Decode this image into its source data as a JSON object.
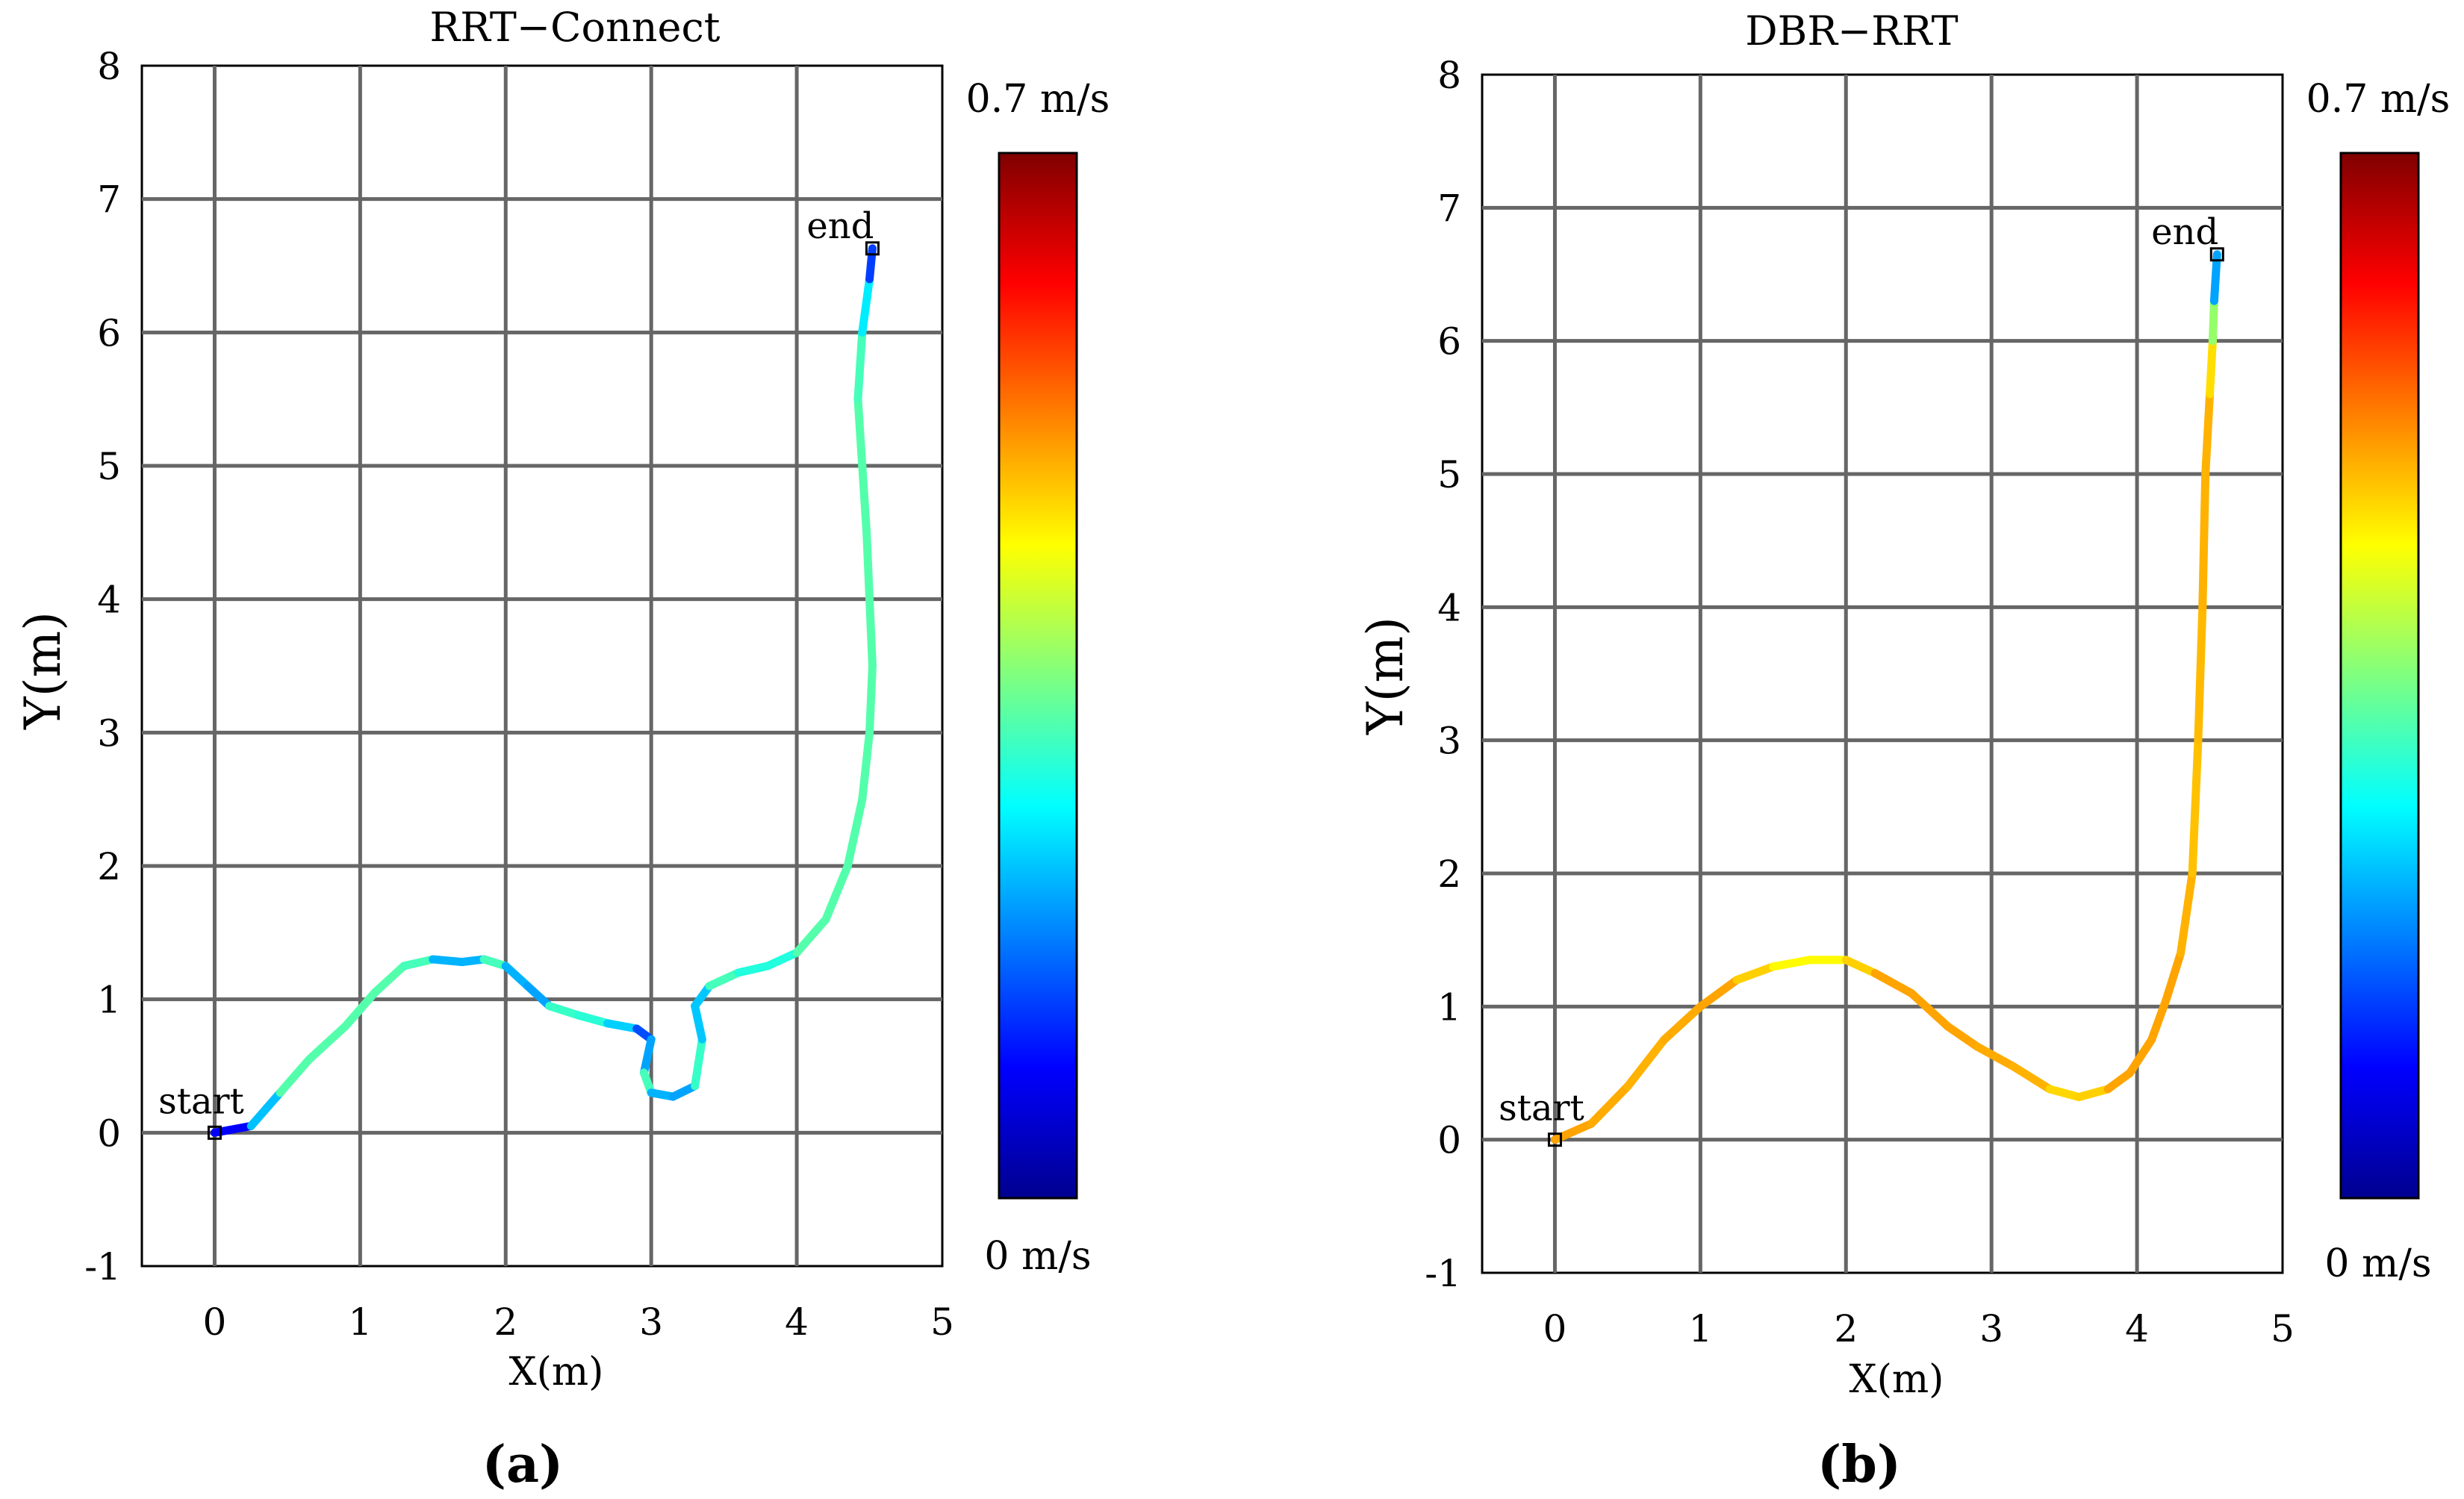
{
  "chart_data": [
    {
      "type": "line",
      "panel_label": "(a)",
      "title": "RRT−Connect",
      "xlabel": "X(m)",
      "ylabel": "Y(m)",
      "xlim": [
        -0.5,
        5
      ],
      "ylim": [
        -1,
        8
      ],
      "xticks": [
        0,
        1,
        2,
        3,
        4,
        5
      ],
      "yticks": [
        -1,
        0,
        1,
        2,
        3,
        4,
        5,
        6,
        7,
        8
      ],
      "grid": true,
      "colorbar": {
        "min_label": "0 m/s",
        "max_label": "0.7 m/s",
        "min": 0,
        "max": 0.7,
        "colormap": "jet"
      },
      "start": {
        "label": "start",
        "x": 0,
        "y": 0
      },
      "end": {
        "label": "end",
        "x": 4.52,
        "y": 6.63
      },
      "series": [
        {
          "name": "path",
          "x": [
            0,
            0.25,
            0.45,
            0.65,
            0.9,
            1.1,
            1.3,
            1.5,
            1.7,
            1.85,
            2.0,
            2.15,
            2.3,
            2.5,
            2.7,
            2.9,
            3.0,
            2.95,
            3.0,
            3.15,
            3.3,
            3.35,
            3.3,
            3.4,
            3.6,
            3.8,
            4.0,
            4.2,
            4.35,
            4.45,
            4.5,
            4.52,
            4.5,
            4.48,
            4.45,
            4.42,
            4.45,
            4.5,
            4.52
          ],
          "y": [
            0,
            0.05,
            0.3,
            0.55,
            0.8,
            1.05,
            1.25,
            1.3,
            1.28,
            1.3,
            1.25,
            1.1,
            0.95,
            0.88,
            0.82,
            0.78,
            0.7,
            0.45,
            0.3,
            0.27,
            0.35,
            0.7,
            0.95,
            1.1,
            1.2,
            1.25,
            1.35,
            1.6,
            2.0,
            2.5,
            3.0,
            3.5,
            4.0,
            4.5,
            5.0,
            5.5,
            6.0,
            6.4,
            6.63
          ],
          "speed": [
            0.05,
            0.12,
            0.32,
            0.32,
            0.32,
            0.32,
            0.32,
            0.3,
            0.12,
            0.3,
            0.32,
            0.1,
            0.3,
            0.3,
            0.28,
            0.18,
            0.1,
            0.3,
            0.32,
            0.1,
            0.3,
            0.3,
            0.15,
            0.3,
            0.32,
            0.25,
            0.32,
            0.32,
            0.32,
            0.32,
            0.32,
            0.32,
            0.32,
            0.32,
            0.32,
            0.32,
            0.3,
            0.2,
            0.06
          ]
        }
      ]
    },
    {
      "type": "line",
      "panel_label": "(b)",
      "title": "DBR−RRT",
      "xlabel": "X(m)",
      "ylabel": "Y(m)",
      "xlim": [
        -0.5,
        5
      ],
      "ylim": [
        -1,
        8
      ],
      "xticks": [
        0,
        1,
        2,
        3,
        4,
        5
      ],
      "yticks": [
        -1,
        0,
        1,
        2,
        3,
        4,
        5,
        6,
        7,
        8
      ],
      "grid": true,
      "colorbar": {
        "min_label": "0 m/s",
        "max_label": "0.7 m/s",
        "min": 0,
        "max": 0.7,
        "colormap": "jet"
      },
      "start": {
        "label": "start",
        "x": 0,
        "y": 0
      },
      "end": {
        "label": "end",
        "x": 4.55,
        "y": 6.65
      },
      "series": [
        {
          "name": "path",
          "x": [
            0,
            0.25,
            0.5,
            0.75,
            1.0,
            1.25,
            1.5,
            1.75,
            2.0,
            2.2,
            2.45,
            2.7,
            2.9,
            3.15,
            3.4,
            3.6,
            3.8,
            3.95,
            4.1,
            4.2,
            4.3,
            4.38,
            4.42,
            4.45,
            4.47,
            4.5,
            4.52,
            4.53,
            4.55
          ],
          "y": [
            0,
            0.12,
            0.4,
            0.75,
            1.0,
            1.2,
            1.3,
            1.35,
            1.35,
            1.25,
            1.1,
            0.85,
            0.7,
            0.55,
            0.38,
            0.32,
            0.38,
            0.5,
            0.75,
            1.05,
            1.4,
            2.0,
            3.0,
            4.0,
            5.0,
            5.6,
            6.0,
            6.3,
            6.65
          ],
          "speed": [
            0.5,
            0.5,
            0.49,
            0.49,
            0.5,
            0.5,
            0.44,
            0.44,
            0.44,
            0.5,
            0.5,
            0.5,
            0.5,
            0.49,
            0.49,
            0.44,
            0.5,
            0.5,
            0.5,
            0.5,
            0.5,
            0.48,
            0.48,
            0.49,
            0.49,
            0.49,
            0.43,
            0.3,
            0.1
          ]
        }
      ]
    }
  ]
}
